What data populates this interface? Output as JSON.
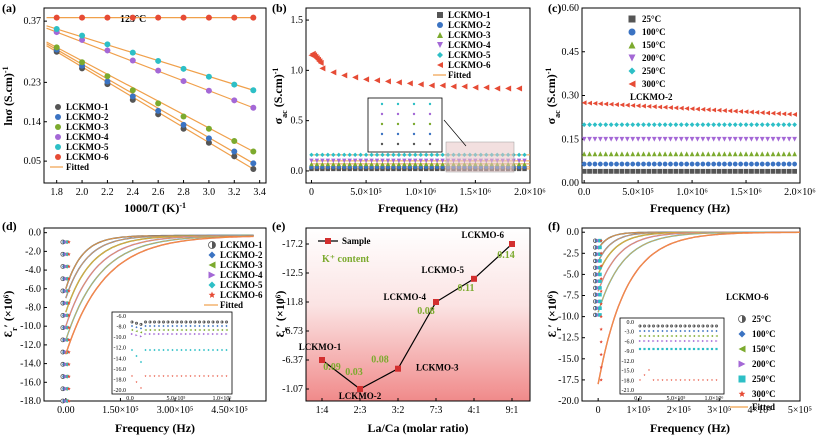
{
  "chart_data": [
    {
      "panel": "(a)",
      "type": "scatter",
      "annotation": "125°C",
      "xlabel": "1000/T (K)",
      "xlabel_sup": "-1",
      "ylabel": "lnσ (S.cm)",
      "ylabel_sup": "-1",
      "xlim": [
        1.7,
        3.45
      ],
      "ylim": [
        0.0,
        0.4
      ],
      "xticks": [
        "1.8",
        "2.0",
        "2.2",
        "2.4",
        "2.6",
        "2.8",
        "3.0",
        "3.2",
        "3.4"
      ],
      "xtick_values": [
        1.8,
        2.0,
        2.2,
        2.4,
        2.6,
        2.8,
        3.0,
        3.2,
        3.4
      ],
      "yticks": [
        "0.05",
        "0.14",
        "0.23",
        "0.37"
      ],
      "ytick_values": [
        0.05,
        0.14,
        0.23,
        0.37
      ],
      "x": [
        1.8,
        2.0,
        2.2,
        2.4,
        2.6,
        2.8,
        3.0,
        3.2,
        3.35
      ],
      "series": [
        {
          "name": "LCKMO-1",
          "color": "#555555",
          "marker": "circle",
          "values": [
            0.3,
            0.262,
            0.226,
            0.19,
            0.157,
            0.124,
            0.092,
            0.061,
            0.032
          ]
        },
        {
          "name": "LCKMO-2",
          "color": "#3b73c2",
          "marker": "circle",
          "values": [
            0.305,
            0.268,
            0.232,
            0.198,
            0.165,
            0.133,
            0.102,
            0.072,
            0.045
          ]
        },
        {
          "name": "LCKMO-3",
          "color": "#7caa2e",
          "marker": "circle",
          "values": [
            0.31,
            0.276,
            0.244,
            0.212,
            0.182,
            0.152,
            0.124,
            0.096,
            0.072
          ]
        },
        {
          "name": "LCKMO-4",
          "color": "#a468d6",
          "marker": "circle",
          "values": [
            0.345,
            0.327,
            0.303,
            0.28,
            0.257,
            0.233,
            0.211,
            0.189,
            0.172
          ]
        },
        {
          "name": "LCKMO-5",
          "color": "#2dbfc6",
          "marker": "circle",
          "values": [
            0.352,
            0.337,
            0.317,
            0.298,
            0.279,
            0.261,
            0.243,
            0.225,
            0.212
          ]
        },
        {
          "name": "LCKMO-6",
          "color": "#e64b35",
          "marker": "circle",
          "values": [
            0.378,
            0.378,
            0.378,
            0.378,
            0.378,
            0.378,
            0.378,
            0.378,
            0.378
          ]
        }
      ],
      "fit_label": "Fitted",
      "fit_color": "#f0a04b"
    },
    {
      "panel": "(b)",
      "type": "scatter",
      "xlabel": "Frequency (Hz)",
      "ylabel": "σ",
      "ylabel_sub": "ac",
      "ylabel_tail": " (S.cm)",
      "ylabel_sup": "-1",
      "xlim": [
        -50000,
        2000000
      ],
      "ylim": [
        -0.12,
        1.62
      ],
      "xticks": [
        "0",
        "5.0×10⁵",
        "1.0×10⁶",
        "1.5×10⁶",
        "2.0×10⁶"
      ],
      "xtick_values": [
        0,
        500000,
        1000000,
        1500000,
        2000000
      ],
      "yticks": [
        "0.0",
        "0.5",
        "1.0",
        "1.5"
      ],
      "ytick_values": [
        0.0,
        0.5,
        1.0,
        1.5
      ],
      "x": [
        0,
        100000,
        200000,
        300000,
        400000,
        500000,
        600000,
        700000,
        800000,
        900000,
        1000000,
        1100000,
        1200000,
        1300000,
        1400000,
        1500000,
        1600000,
        1700000,
        1800000,
        1900000
      ],
      "series": [
        {
          "name": "LCKMO-1",
          "color": "#555555",
          "marker": "square",
          "level": 0.02
        },
        {
          "name": "LCKMO-2",
          "color": "#3b73c2",
          "marker": "circle",
          "level": 0.04
        },
        {
          "name": "LCKMO-3",
          "color": "#7caa2e",
          "marker": "triangle-up",
          "level": 0.07
        },
        {
          "name": "LCKMO-4",
          "color": "#a468d6",
          "marker": "triangle-down",
          "level": 0.1
        },
        {
          "name": "LCKMO-5",
          "color": "#2dbfc6",
          "marker": "diamond",
          "level": 0.16
        },
        {
          "name": "LCKMO-6",
          "color": "#e64b35",
          "marker": "triangle-left",
          "values": [
            1.15,
            1.02,
            0.98,
            0.95,
            0.93,
            0.91,
            0.9,
            0.89,
            0.88,
            0.87,
            0.86,
            0.85,
            0.85,
            0.84,
            0.84,
            0.83,
            0.83,
            0.82,
            0.82,
            0.82
          ]
        }
      ],
      "fit_label": "Fitted",
      "fit_color": "#f0a04b",
      "inset": "zoom of 1.3×10⁶–1.8×10⁶ Hz region"
    },
    {
      "panel": "(c)",
      "type": "scatter",
      "xlabel": "Frequency (Hz)",
      "ylabel": "σ",
      "ylabel_sub": "ac",
      "ylabel_tail": " (S.cm)",
      "ylabel_sup": "-1",
      "xlim": [
        -20000,
        2000000
      ],
      "ylim": [
        0.0,
        0.6
      ],
      "xticks": [
        "0.0",
        "5.0×10⁵",
        "1.0×10⁶",
        "1.5×10⁶",
        "2.0×10⁶"
      ],
      "xtick_values": [
        0,
        500000,
        1000000,
        1500000,
        2000000
      ],
      "yticks": [
        "0.00",
        "0.15",
        "0.30",
        "0.45",
        "0.60"
      ],
      "ytick_values": [
        0.0,
        0.15,
        0.3,
        0.45,
        0.6
      ],
      "sample_label": "LCKMO-2",
      "series": [
        {
          "name": "25°C",
          "color": "#555555",
          "marker": "square",
          "level": 0.04
        },
        {
          "name": "100°C",
          "color": "#3b73c2",
          "marker": "circle",
          "level": 0.065
        },
        {
          "name": "150°C",
          "color": "#7caa2e",
          "marker": "triangle-up",
          "level": 0.1
        },
        {
          "name": "200°C",
          "color": "#a468d6",
          "marker": "triangle-down",
          "level": 0.15
        },
        {
          "name": "250°C",
          "color": "#2dbfc6",
          "marker": "diamond",
          "level": 0.2
        },
        {
          "name": "300°C",
          "color": "#e64b35",
          "marker": "triangle-left",
          "values_start": 0.275,
          "values_end": 0.235
        }
      ]
    },
    {
      "panel": "(d)",
      "type": "line",
      "xlabel": "Frequency (Hz)",
      "ylabel": "Ɛ",
      "ylabel_sub": "r",
      "ylabel_tail": "′ (×10⁶)",
      "xlim": [
        -60000,
        550000
      ],
      "ylim": [
        -18.0,
        0.5
      ],
      "xticks": [
        "0.00",
        "1.50×10⁵",
        "3.00×10⁵",
        "4.50×10⁵"
      ],
      "xtick_values": [
        0,
        150000,
        300000,
        450000
      ],
      "yticks": [
        "-18.0",
        "-16.0",
        "-14.0",
        "-12.0",
        "-10.0",
        "-8.0",
        "-6.0",
        "-4.0",
        "-2.0",
        "0.0"
      ],
      "ytick_values": [
        -18,
        -16,
        -14,
        -12,
        -10,
        -8,
        -6,
        -4,
        -2,
        0
      ],
      "series": [
        {
          "name": "LCKMO-1",
          "color": "#555555",
          "marker": "half-circle"
        },
        {
          "name": "LCKMO-2",
          "color": "#3b73c2",
          "marker": "diamond"
        },
        {
          "name": "LCKMO-3",
          "color": "#7caa2e",
          "marker": "triangle-left"
        },
        {
          "name": "LCKMO-4",
          "color": "#a468d6",
          "marker": "triangle-right"
        },
        {
          "name": "LCKMO-5",
          "color": "#2dbfc6",
          "marker": "diamond"
        },
        {
          "name": "LCKMO-6",
          "color": "#e64b35",
          "marker": "star"
        }
      ],
      "fit_label": "Fitted",
      "fit_color": "#f0a04b",
      "inset_yticks": [
        "-6.0",
        "-8.0",
        "-10.0",
        "-12.0",
        "-14.0",
        "-16.0",
        "-18.0",
        "-20.0"
      ],
      "inset_xticks": [
        "0.0",
        "5.0×10⁵",
        "1.0×10⁶"
      ]
    },
    {
      "panel": "(e)",
      "type": "line",
      "xlabel": "La/Ca (molar ratio)",
      "ylabel": "Ɛ",
      "ylabel_sub": "r",
      "ylabel_tail": "′ (×10⁶)",
      "categories": [
        "1:4",
        "2:3",
        "3:2",
        "7:3",
        "4:1",
        "9:1"
      ],
      "yticks": [
        "-17.2",
        "-12.5",
        "-11.8",
        "-6.73",
        "-6.37",
        "-1.07"
      ],
      "ytick_values": [
        -17.2,
        -12.5,
        -11.8,
        -6.73,
        -6.37,
        -1.07
      ],
      "series": [
        {
          "name": "Sample",
          "color": "#d32f2f",
          "marker": "square",
          "points": [
            "LCKMO-1",
            "LCKMO-2",
            "LCKMO-3",
            "LCKMO-4",
            "LCKMO-5",
            "LCKMO-6"
          ]
        }
      ],
      "k_label": "K⁺ content",
      "k_values": [
        "0.09",
        "0.03",
        "0.08",
        "0.08",
        "0.11",
        "0.14"
      ],
      "k_color": "#7caa2e"
    },
    {
      "panel": "(f)",
      "type": "line",
      "xlabel": "Frequency (Hz)",
      "ylabel": "Ɛ",
      "ylabel_sub": "r",
      "ylabel_tail": "′ (×10⁶)",
      "xlim": [
        -40000,
        500000
      ],
      "ylim": [
        -20.0,
        0.5
      ],
      "xticks": [
        "0",
        "1×10⁵",
        "2×10⁵",
        "3×10⁵",
        "4×10⁵",
        "5×10⁵"
      ],
      "xtick_values": [
        0,
        100000,
        200000,
        300000,
        400000,
        500000
      ],
      "yticks": [
        "-20.0",
        "-17.5",
        "-15.0",
        "-12.5",
        "-10.0",
        "-7.5",
        "-5.0",
        "-2.5",
        "0.0"
      ],
      "ytick_values": [
        -20,
        -17.5,
        -15,
        -12.5,
        -10,
        -7.5,
        -5,
        -2.5,
        0
      ],
      "sample_label": "LCKMO-6",
      "series": [
        {
          "name": "25°C",
          "color": "#555555",
          "marker": "half-circle"
        },
        {
          "name": "100°C",
          "color": "#3b73c2",
          "marker": "diamond"
        },
        {
          "name": "150°C",
          "color": "#7caa2e",
          "marker": "triangle-left"
        },
        {
          "name": "200°C",
          "color": "#a468d6",
          "marker": "triangle-right"
        },
        {
          "name": "250°C",
          "color": "#2dbfc6",
          "marker": "square"
        },
        {
          "name": "300°C",
          "color": "#e64b35",
          "marker": "star"
        }
      ],
      "fit_label": "Fitted",
      "fit_color": "#f0a04b",
      "inset_yticks": [
        "0.0",
        "-3.0",
        "-6.0",
        "-9.0",
        "-12.0",
        "-15.0",
        "-18.0",
        "-21.0"
      ],
      "inset_xticks": [
        "0.0",
        "5.0×10⁵",
        "1.0×10⁶"
      ]
    }
  ]
}
